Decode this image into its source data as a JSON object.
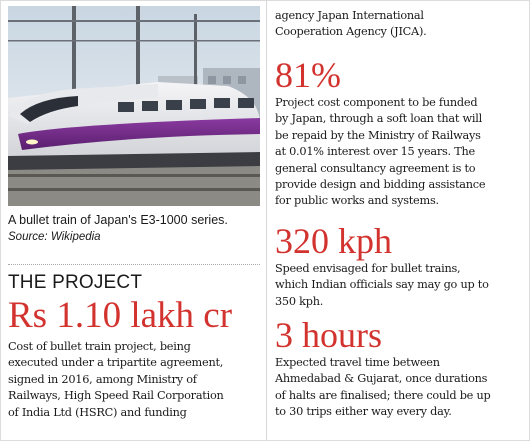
{
  "photo": {
    "icon": "bullet-train-photo"
  },
  "caption": {
    "text": "A bullet train of Japan's E3-1000 series.",
    "source": "Source: Wikipedia"
  },
  "project": {
    "heading": "THE PROJECT",
    "cost": "Rs 1.10 lakh cr",
    "lines": [
      "Cost of bullet train project, being",
      "executed under a tripartite agreement,",
      "signed in 2016, among Ministry of",
      "Railways, High Speed Rail Corporation",
      "of India Ltd (HSRC) and funding"
    ]
  },
  "right": {
    "intro_lines": [
      "agency Japan International",
      "Cooperation Agency (JICA)."
    ],
    "stats": [
      {
        "value": "81%",
        "lines": [
          "Project cost component to be funded",
          "by Japan, through a soft loan that will",
          "be repaid by the Ministry of Railways",
          "at 0.01% interest over 15 years. The",
          "general consultancy agreement is to",
          "provide design and bidding assistance",
          "for public works and systems."
        ]
      },
      {
        "value": "320 kph",
        "lines": [
          "Speed envisaged for bullet trains,",
          "which Indian officials say may go up to",
          "350 kph."
        ]
      },
      {
        "value": "3 hours",
        "lines": [
          "Expected travel time between",
          "Ahmedabad & Gujarat, once durations",
          "of halts are finalised; there could be up",
          "to 30 trips either way every day."
        ]
      }
    ]
  },
  "colors": {
    "accent": "#d2332f",
    "text": "#1a1a1a"
  }
}
